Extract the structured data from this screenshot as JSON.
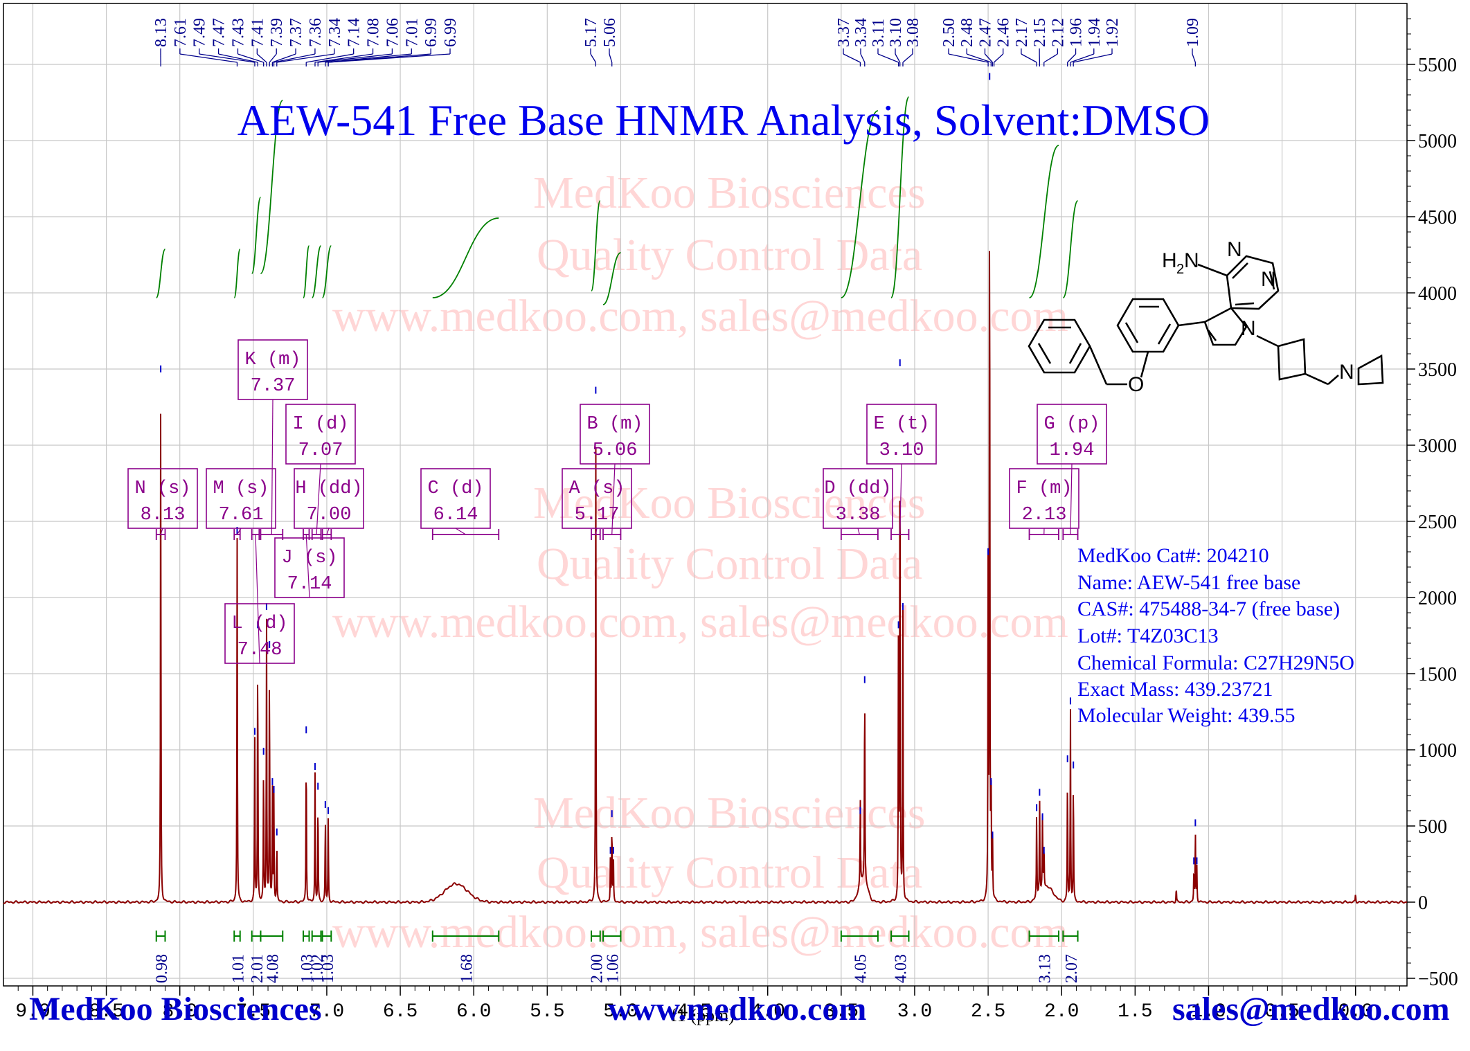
{
  "chart_data": {
    "type": "line",
    "title": "AEW-541 Free Base HNMR Analysis, Solvent:DMSO",
    "xlabel": "f1 (ppm)",
    "ylabel": "",
    "xlim": [
      9.2,
      -0.35
    ],
    "ylim": [
      -550,
      5900
    ],
    "x_ticks": [
      "9.0",
      "8.5",
      "8.0",
      "7.5",
      "7.0",
      "6.5",
      "6.0",
      "5.5",
      "5.0",
      "4.5",
      "4.0",
      "3.5",
      "3.0",
      "2.5",
      "2.0",
      "1.5",
      "1.0",
      "0.5",
      "0.0"
    ],
    "y_ticks": [
      "5500",
      "5000",
      "4500",
      "4000",
      "3500",
      "3000",
      "2500",
      "2000",
      "1500",
      "1000",
      "500",
      "0",
      "-500"
    ],
    "spectrum_color": "#8b0000",
    "integral_color": "#008000",
    "label_color": "#00008b",
    "peaks": [
      {
        "x": 8.13,
        "h": 3460
      },
      {
        "x": 7.61,
        "h": 2400
      },
      {
        "x": 7.49,
        "h": 1080
      },
      {
        "x": 7.47,
        "h": 1780
      },
      {
        "x": 7.43,
        "h": 950
      },
      {
        "x": 7.41,
        "h": 1900
      },
      {
        "x": 7.39,
        "h": 1650
      },
      {
        "x": 7.37,
        "h": 750
      },
      {
        "x": 7.36,
        "h": 700
      },
      {
        "x": 7.34,
        "h": 420
      },
      {
        "x": 7.14,
        "h": 1090
      },
      {
        "x": 7.08,
        "h": 850
      },
      {
        "x": 7.06,
        "h": 720
      },
      {
        "x": 7.01,
        "h": 600
      },
      {
        "x": 6.99,
        "h": 560
      },
      {
        "x": 5.17,
        "h": 3320
      },
      {
        "x": 5.07,
        "h": 300
      },
      {
        "x": 5.06,
        "h": 540
      },
      {
        "x": 5.05,
        "h": 300
      },
      {
        "x": 3.37,
        "h": 560
      },
      {
        "x": 3.34,
        "h": 1420
      },
      {
        "x": 3.11,
        "h": 1780
      },
      {
        "x": 3.1,
        "h": 3500
      },
      {
        "x": 3.08,
        "h": 1900
      },
      {
        "x": 2.5,
        "h": 2260
      },
      {
        "x": 2.49,
        "h": 5380
      },
      {
        "x": 2.48,
        "h": 750
      },
      {
        "x": 2.47,
        "h": 400
      },
      {
        "x": 2.17,
        "h": 580
      },
      {
        "x": 2.15,
        "h": 680
      },
      {
        "x": 2.13,
        "h": 520
      },
      {
        "x": 2.12,
        "h": 300
      },
      {
        "x": 1.96,
        "h": 900
      },
      {
        "x": 1.94,
        "h": 1280
      },
      {
        "x": 1.92,
        "h": 860
      },
      {
        "x": 1.1,
        "h": 230
      },
      {
        "x": 1.09,
        "h": 480
      },
      {
        "x": 1.08,
        "h": 230
      },
      {
        "x": 1.22,
        "h": 100
      },
      {
        "x": 0.0,
        "h": 60
      }
    ],
    "broad_peaks": [
      {
        "x": 6.12,
        "h": 120,
        "w": 0.11
      },
      {
        "x": 3.35,
        "h": 150,
        "w": 0.04
      },
      {
        "x": 2.1,
        "h": 100,
        "w": 0.06
      }
    ],
    "peak_labels": {
      "group1": [
        "8.13",
        "7.61",
        "7.49",
        "7.47",
        "7.43",
        "7.41",
        "7.39",
        "7.37",
        "7.36",
        "7.34",
        "7.14",
        "7.08",
        "7.06",
        "7.01",
        "6.99",
        "6.99"
      ],
      "group2": [
        "5.17",
        "5.06"
      ],
      "group3": [
        "3.37",
        "3.34",
        "3.11",
        "3.10",
        "3.08"
      ],
      "group4": [
        "2.50",
        "2.48",
        "2.47",
        "2.46",
        "2.17",
        "2.15",
        "2.12",
        "1.96",
        "1.94",
        "1.92"
      ],
      "group5": [
        "1.09"
      ]
    },
    "multiplets": [
      {
        "name": "N (s)",
        "value": "8.13",
        "range": [
          8.16,
          8.1
        ]
      },
      {
        "name": "M (s)",
        "value": "7.61",
        "range": [
          7.63,
          7.59
        ]
      },
      {
        "name": "L (d)",
        "value": "7.48",
        "range": [
          7.51,
          7.46
        ]
      },
      {
        "name": "K (m)",
        "value": "7.37",
        "range": [
          7.45,
          7.3
        ]
      },
      {
        "name": "J (s)",
        "value": "7.14",
        "range": [
          7.16,
          7.12
        ]
      },
      {
        "name": "I (d)",
        "value": "7.07",
        "range": [
          7.1,
          7.04
        ]
      },
      {
        "name": "H (dd)",
        "value": "7.00",
        "range": [
          7.03,
          6.97
        ]
      },
      {
        "name": "C (d)",
        "value": "6.14",
        "range": [
          6.28,
          5.83
        ]
      },
      {
        "name": "A (s)",
        "value": "5.17",
        "range": [
          5.2,
          5.14
        ]
      },
      {
        "name": "B (m)",
        "value": "5.06",
        "range": [
          5.12,
          5.0
        ]
      },
      {
        "name": "D (dd)",
        "value": "3.38",
        "range": [
          3.5,
          3.25
        ]
      },
      {
        "name": "E (t)",
        "value": "3.10",
        "range": [
          3.16,
          3.04
        ]
      },
      {
        "name": "F (m)",
        "value": "2.13",
        "range": [
          2.22,
          2.02
        ]
      },
      {
        "name": "G (p)",
        "value": "1.94",
        "range": [
          1.99,
          1.89
        ]
      }
    ],
    "integrals": [
      {
        "value": "0.98",
        "range": [
          8.16,
          8.1
        ]
      },
      {
        "value": "1.01",
        "range": [
          7.63,
          7.59
        ]
      },
      {
        "value": "2.01",
        "range": [
          7.51,
          7.45
        ]
      },
      {
        "value": "4.08",
        "range": [
          7.45,
          7.3
        ]
      },
      {
        "value": "1.03",
        "range": [
          7.16,
          7.12
        ]
      },
      {
        "value": "1.02",
        "range": [
          7.1,
          7.04
        ]
      },
      {
        "value": "1.03",
        "range": [
          7.03,
          6.97
        ]
      },
      {
        "value": "1.68",
        "range": [
          6.28,
          5.83
        ]
      },
      {
        "value": "2.00",
        "range": [
          5.2,
          5.14
        ]
      },
      {
        "value": "1.06",
        "range": [
          5.12,
          5.0
        ]
      },
      {
        "value": "4.05",
        "range": [
          3.5,
          3.25
        ]
      },
      {
        "value": "4.03",
        "range": [
          3.16,
          3.04
        ]
      },
      {
        "value": "3.13",
        "range": [
          2.22,
          2.02
        ]
      },
      {
        "value": "2.07",
        "range": [
          1.99,
          1.89
        ]
      }
    ]
  },
  "watermark": {
    "line1": "MedKoo Biosciences",
    "line2": "Quality Control Data",
    "line3": "www.medkoo.com, sales@medkoo.com"
  },
  "info": {
    "cat": "MedKoo Cat#: 204210",
    "name": "Name: AEW-541 free base",
    "cas": "CAS#: 475488-34-7 (free base)",
    "lot": "Lot#: T4Z03C13",
    "formula": "Chemical Formula: C27H29N5O",
    "exact_mass": "Exact Mass: 439.23721",
    "mw": "Molecular Weight: 439.55"
  },
  "structure": {
    "h2n": "H",
    "h2n_sub": "2",
    "n_amine": "N",
    "n1": "N",
    "n3": "N",
    "n7": "N",
    "o": "O",
    "n_azetidine": "N"
  },
  "footer": {
    "left": "MedKoo Biosciences",
    "center": "www.medkoo.com",
    "right": "sales@medkoo.com"
  }
}
